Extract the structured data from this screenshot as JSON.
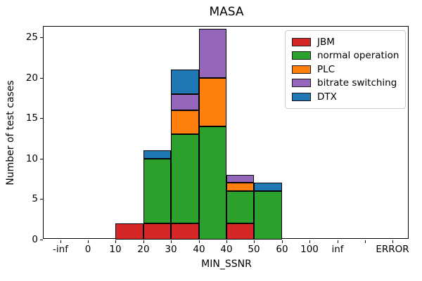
{
  "figure": {
    "title": "MASA",
    "background": "#ffffff"
  },
  "chart_data": {
    "type": "bar",
    "subtype": "stacked-histogram",
    "title": "MASA",
    "xlabel": "MIN_SSNR",
    "ylabel": "Number of test cases",
    "x_tick_labels": [
      "-inf",
      "0",
      "10",
      "20",
      "30",
      "40",
      "40",
      "50",
      "60",
      "100",
      "inf",
      "",
      "ERROR"
    ],
    "y_ticks": [
      0,
      5,
      10,
      15,
      20,
      25
    ],
    "ylim": [
      0,
      26.3
    ],
    "xlim_units": [
      -0.6,
      12.6
    ],
    "bin_count": 12,
    "grid": false,
    "edge_color": "#000000",
    "legend_position": "upper right",
    "series": [
      {
        "name": "JBM",
        "color": "#d62728",
        "values": [
          0,
          0,
          2,
          2,
          2,
          0,
          2,
          0,
          0,
          0,
          0,
          0
        ]
      },
      {
        "name": "normal operation",
        "color": "#2ca02c",
        "values": [
          0,
          0,
          0,
          8,
          11,
          14,
          4,
          6,
          0,
          0,
          0,
          0
        ]
      },
      {
        "name": "PLC",
        "color": "#ff7f0e",
        "values": [
          0,
          0,
          0,
          0,
          3,
          6,
          1,
          0,
          0,
          0,
          0,
          0
        ]
      },
      {
        "name": "bitrate switching",
        "color": "#9467bd",
        "values": [
          0,
          0,
          0,
          0,
          2,
          6,
          1,
          0,
          0,
          0,
          0,
          0
        ]
      },
      {
        "name": "DTX",
        "color": "#1f77b4",
        "values": [
          0,
          0,
          0,
          1,
          3,
          0,
          0,
          1,
          0,
          0,
          0,
          0
        ]
      }
    ],
    "bin_totals": [
      0,
      0,
      2,
      11,
      21,
      26,
      8,
      7,
      0,
      0,
      0,
      0
    ]
  }
}
